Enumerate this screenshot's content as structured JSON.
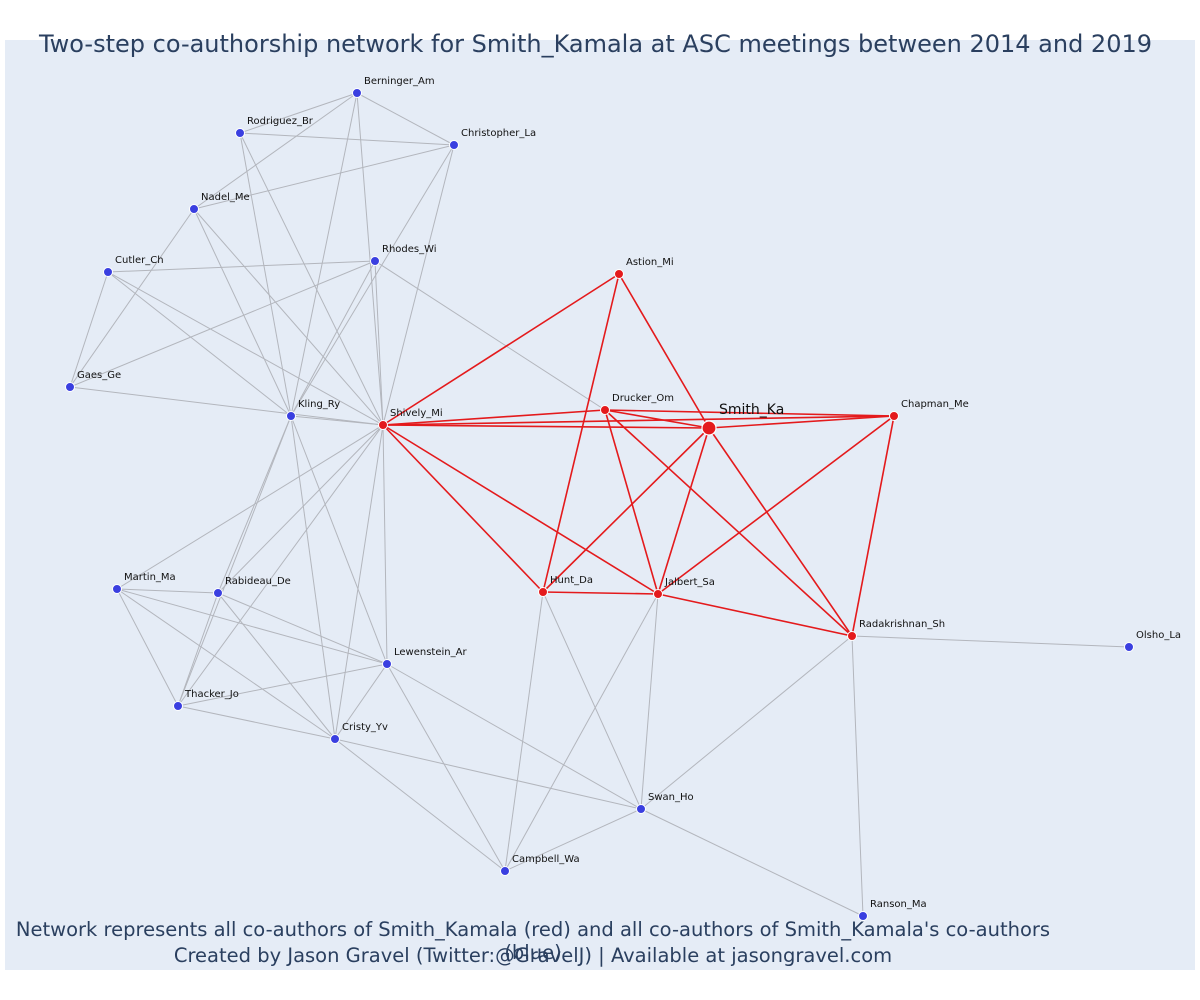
{
  "title": "Two-step co-authorship network for Smith_Kamala at ASC meetings between 2014 and 2019",
  "caption": {
    "line1": "Network represents all co-authors of Smith_Kamala (red) and all co-authors of Smith_Kamala's co-authors (blue)",
    "line2": "Created by Jason Gravel (Twitter:@GravelJ) | Available at jasongravel.com"
  },
  "colors": {
    "background": "#e5ecf6",
    "first_degree": "#e41a1c",
    "second_degree": "#3a3fe0",
    "edge_gray": "#b3b6bd",
    "text": "#2a3f5f"
  },
  "nodes": [
    {
      "id": "Smith_Ka",
      "label": "Smith_Ka",
      "group": "center"
    },
    {
      "id": "Astion_Mi",
      "label": "Astion_Mi",
      "group": "coauthor"
    },
    {
      "id": "Drucker_Om",
      "label": "Drucker_Om",
      "group": "coauthor"
    },
    {
      "id": "Chapman_Me",
      "label": "Chapman_Me",
      "group": "coauthor"
    },
    {
      "id": "Shively_Mi",
      "label": "Shively_Mi",
      "group": "coauthor"
    },
    {
      "id": "Hunt_Da",
      "label": "Hunt_Da",
      "group": "coauthor"
    },
    {
      "id": "Jalbert_Sa",
      "label": "Jalbert_Sa",
      "group": "coauthor"
    },
    {
      "id": "Radakrishnan_Sh",
      "label": "Radakrishnan_Sh",
      "group": "coauthor"
    },
    {
      "id": "Berninger_Am",
      "label": "Berninger_Am",
      "group": "second"
    },
    {
      "id": "Rodriguez_Br",
      "label": "Rodriguez_Br",
      "group": "second"
    },
    {
      "id": "Christopher_La",
      "label": "Christopher_La",
      "group": "second"
    },
    {
      "id": "Nadel_Me",
      "label": "Nadel_Me",
      "group": "second"
    },
    {
      "id": "Cutler_Ch",
      "label": "Cutler_Ch",
      "group": "second"
    },
    {
      "id": "Rhodes_Wi",
      "label": "Rhodes_Wi",
      "group": "second"
    },
    {
      "id": "Gaes_Ge",
      "label": "Gaes_Ge",
      "group": "second"
    },
    {
      "id": "Kling_Ry",
      "label": "Kling_Ry",
      "group": "second"
    },
    {
      "id": "Martin_Ma",
      "label": "Martin_Ma",
      "group": "second"
    },
    {
      "id": "Rabideau_De",
      "label": "Rabideau_De",
      "group": "second"
    },
    {
      "id": "Lewenstein_Ar",
      "label": "Lewenstein_Ar",
      "group": "second"
    },
    {
      "id": "Thacker_Jo",
      "label": "Thacker_Jo",
      "group": "second"
    },
    {
      "id": "Cristy_Yv",
      "label": "Cristy_Yv",
      "group": "second"
    },
    {
      "id": "Swan_Ho",
      "label": "Swan_Ho",
      "group": "second"
    },
    {
      "id": "Campbell_Wa",
      "label": "Campbell_Wa",
      "group": "second"
    },
    {
      "id": "Olsho_La",
      "label": "Olsho_La",
      "group": "second"
    },
    {
      "id": "Ranson_Ma",
      "label": "Ranson_Ma",
      "group": "second"
    }
  ],
  "edges": [
    [
      "Smith_Ka",
      "Astion_Mi",
      "red"
    ],
    [
      "Smith_Ka",
      "Drucker_Om",
      "red"
    ],
    [
      "Smith_Ka",
      "Chapman_Me",
      "red"
    ],
    [
      "Smith_Ka",
      "Shively_Mi",
      "red"
    ],
    [
      "Smith_Ka",
      "Hunt_Da",
      "red"
    ],
    [
      "Smith_Ka",
      "Jalbert_Sa",
      "red"
    ],
    [
      "Smith_Ka",
      "Radakrishnan_Sh",
      "red"
    ],
    [
      "Shively_Mi",
      "Astion_Mi",
      "red"
    ],
    [
      "Shively_Mi",
      "Drucker_Om",
      "red"
    ],
    [
      "Shively_Mi",
      "Hunt_Da",
      "red"
    ],
    [
      "Shively_Mi",
      "Jalbert_Sa",
      "red"
    ],
    [
      "Shively_Mi",
      "Chapman_Me",
      "red"
    ],
    [
      "Astion_Mi",
      "Hunt_Da",
      "red"
    ],
    [
      "Drucker_Om",
      "Chapman_Me",
      "red"
    ],
    [
      "Drucker_Om",
      "Jalbert_Sa",
      "red"
    ],
    [
      "Drucker_Om",
      "Radakrishnan_Sh",
      "red"
    ],
    [
      "Chapman_Me",
      "Jalbert_Sa",
      "red"
    ],
    [
      "Chapman_Me",
      "Radakrishnan_Sh",
      "red"
    ],
    [
      "Hunt_Da",
      "Jalbert_Sa",
      "red"
    ],
    [
      "Jalbert_Sa",
      "Radakrishnan_Sh",
      "red"
    ],
    [
      "Berninger_Am",
      "Rodriguez_Br",
      "gray"
    ],
    [
      "Berninger_Am",
      "Christopher_La",
      "gray"
    ],
    [
      "Berninger_Am",
      "Nadel_Me",
      "gray"
    ],
    [
      "Berninger_Am",
      "Kling_Ry",
      "gray"
    ],
    [
      "Berninger_Am",
      "Shively_Mi",
      "gray"
    ],
    [
      "Rodriguez_Br",
      "Christopher_La",
      "gray"
    ],
    [
      "Rodriguez_Br",
      "Kling_Ry",
      "gray"
    ],
    [
      "Rodriguez_Br",
      "Shively_Mi",
      "gray"
    ],
    [
      "Christopher_La",
      "Nadel_Me",
      "gray"
    ],
    [
      "Christopher_La",
      "Kling_Ry",
      "gray"
    ],
    [
      "Christopher_La",
      "Shively_Mi",
      "gray"
    ],
    [
      "Nadel_Me",
      "Gaes_Ge",
      "gray"
    ],
    [
      "Nadel_Me",
      "Kling_Ry",
      "gray"
    ],
    [
      "Nadel_Me",
      "Shively_Mi",
      "gray"
    ],
    [
      "Cutler_Ch",
      "Rhodes_Wi",
      "gray"
    ],
    [
      "Cutler_Ch",
      "Gaes_Ge",
      "gray"
    ],
    [
      "Cutler_Ch",
      "Kling_Ry",
      "gray"
    ],
    [
      "Cutler_Ch",
      "Shively_Mi",
      "gray"
    ],
    [
      "Rhodes_Wi",
      "Gaes_Ge",
      "gray"
    ],
    [
      "Rhodes_Wi",
      "Kling_Ry",
      "gray"
    ],
    [
      "Rhodes_Wi",
      "Shively_Mi",
      "gray"
    ],
    [
      "Rhodes_Wi",
      "Drucker_Om",
      "gray"
    ],
    [
      "Gaes_Ge",
      "Shively_Mi",
      "gray"
    ],
    [
      "Kling_Ry",
      "Shively_Mi",
      "gray"
    ],
    [
      "Kling_Ry",
      "Rabideau_De",
      "gray"
    ],
    [
      "Kling_Ry",
      "Thacker_Jo",
      "gray"
    ],
    [
      "Kling_Ry",
      "Cristy_Yv",
      "gray"
    ],
    [
      "Kling_Ry",
      "Lewenstein_Ar",
      "gray"
    ],
    [
      "Shively_Mi",
      "Martin_Ma",
      "gray"
    ],
    [
      "Shively_Mi",
      "Rabideau_De",
      "gray"
    ],
    [
      "Shively_Mi",
      "Thacker_Jo",
      "gray"
    ],
    [
      "Shively_Mi",
      "Cristy_Yv",
      "gray"
    ],
    [
      "Shively_Mi",
      "Lewenstein_Ar",
      "gray"
    ],
    [
      "Shively_Mi",
      "Drucker_Om",
      "gray"
    ],
    [
      "Martin_Ma",
      "Rabideau_De",
      "gray"
    ],
    [
      "Martin_Ma",
      "Thacker_Jo",
      "gray"
    ],
    [
      "Martin_Ma",
      "Cristy_Yv",
      "gray"
    ],
    [
      "Martin_Ma",
      "Lewenstein_Ar",
      "gray"
    ],
    [
      "Rabideau_De",
      "Thacker_Jo",
      "gray"
    ],
    [
      "Rabideau_De",
      "Cristy_Yv",
      "gray"
    ],
    [
      "Rabideau_De",
      "Lewenstein_Ar",
      "gray"
    ],
    [
      "Thacker_Jo",
      "Lewenstein_Ar",
      "gray"
    ],
    [
      "Thacker_Jo",
      "Cristy_Yv",
      "gray"
    ],
    [
      "Lewenstein_Ar",
      "Cristy_Yv",
      "gray"
    ],
    [
      "Lewenstein_Ar",
      "Swan_Ho",
      "gray"
    ],
    [
      "Lewenstein_Ar",
      "Campbell_Wa",
      "gray"
    ],
    [
      "Cristy_Yv",
      "Swan_Ho",
      "gray"
    ],
    [
      "Cristy_Yv",
      "Campbell_Wa",
      "gray"
    ],
    [
      "Hunt_Da",
      "Swan_Ho",
      "gray"
    ],
    [
      "Hunt_Da",
      "Campbell_Wa",
      "gray"
    ],
    [
      "Jalbert_Sa",
      "Swan_Ho",
      "gray"
    ],
    [
      "Jalbert_Sa",
      "Campbell_Wa",
      "gray"
    ],
    [
      "Swan_Ho",
      "Campbell_Wa",
      "gray"
    ],
    [
      "Swan_Ho",
      "Radakrishnan_Sh",
      "gray"
    ],
    [
      "Swan_Ho",
      "Ranson_Ma",
      "gray"
    ],
    [
      "Radakrishnan_Sh",
      "Olsho_La",
      "gray"
    ],
    [
      "Radakrishnan_Sh",
      "Ranson_Ma",
      "gray"
    ]
  ]
}
